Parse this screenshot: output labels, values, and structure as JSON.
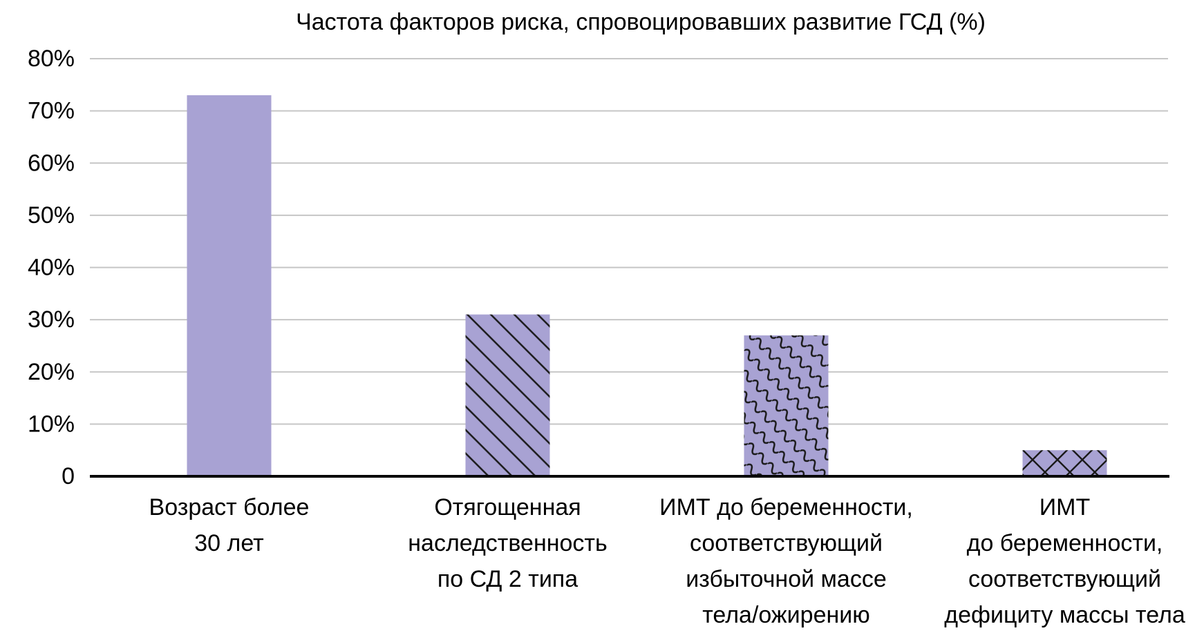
{
  "chart_data": {
    "type": "bar",
    "title": "Частота факторов риска, спровоцировавших развитие ГСД (%)",
    "xlabel": "",
    "ylabel": "",
    "unit": "%",
    "categories": [
      "Возраст более\n30 лет",
      "Отягощенная\nнаследственность\nпо СД 2 типа",
      "ИМТ до беременности,\nсоответствующий\nизбыточной массе\nтела/ожирению",
      "ИМТ\nдо беременности,\nсоответствующий\nдефициту массы тела"
    ],
    "values": [
      73,
      31,
      27,
      5
    ],
    "ylim": [
      0,
      80
    ],
    "ytick_step": 10,
    "ytick_labels": [
      "0",
      "10%",
      "20%",
      "30%",
      "40%",
      "50%",
      "60%",
      "70%",
      "80%"
    ],
    "grid": true,
    "legend": false,
    "bar_patterns": [
      "solid",
      "diagonal-stripe",
      "wave",
      "crosshatch"
    ],
    "colors": {
      "bar_fill": "#a8a2d3",
      "pattern_line": "#1a1a1a",
      "gridline": "#c6c6c6",
      "axis": "#000000",
      "text": "#000000",
      "background": "#ffffff"
    }
  }
}
